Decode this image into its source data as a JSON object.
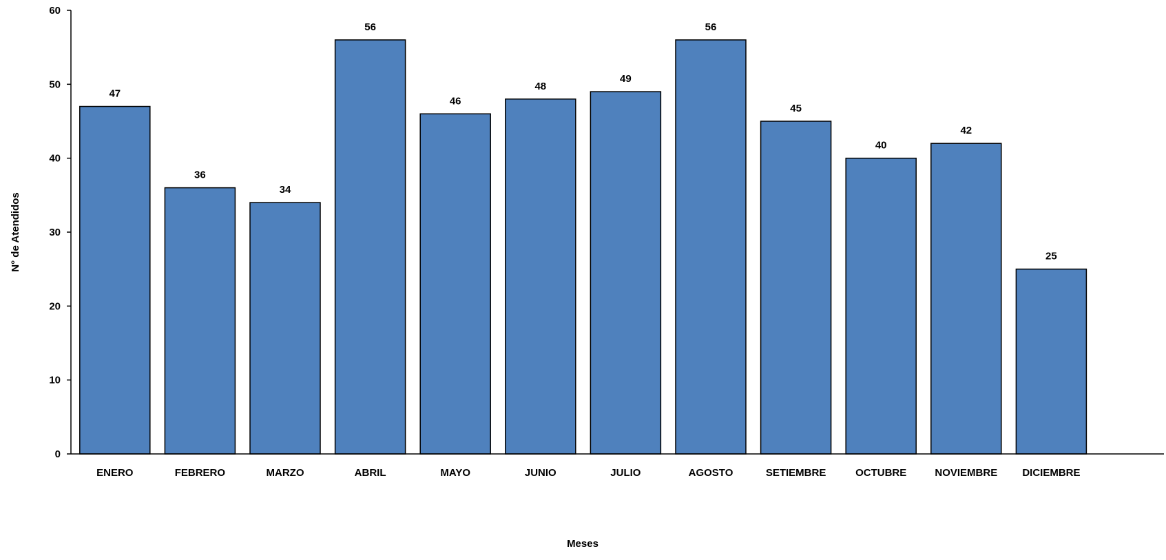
{
  "chart_data": {
    "type": "bar",
    "title": "",
    "xlabel": "Meses",
    "ylabel": "N° de Atendidos",
    "categories": [
      "ENERO",
      "FEBRERO",
      "MARZO",
      "ABRIL",
      "MAYO",
      "JUNIO",
      "JULIO",
      "AGOSTO",
      "SETIEMBRE",
      "OCTUBRE",
      "NOVIEMBRE",
      "DICIEMBRE"
    ],
    "values": [
      47,
      36,
      34,
      56,
      46,
      48,
      49,
      56,
      45,
      40,
      42,
      25
    ],
    "ylim": [
      0,
      60
    ],
    "yticks": [
      0,
      10,
      20,
      30,
      40,
      50,
      60
    ],
    "grid": false,
    "legend": "none",
    "bar_color": "#4F81BD",
    "bar_edge_color": "#000000"
  }
}
